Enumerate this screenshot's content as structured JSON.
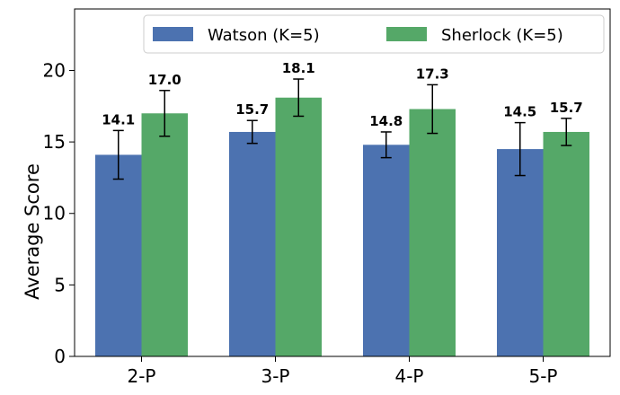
{
  "chart_data": {
    "type": "bar",
    "title": "",
    "xlabel": "",
    "ylabel": "Average Score",
    "ylim": [
      0,
      24.3
    ],
    "yticks": [
      0,
      5,
      10,
      15,
      20
    ],
    "grid": false,
    "legend_position": "top-right",
    "categories": [
      "2-P",
      "3-P",
      "4-P",
      "5-P"
    ],
    "series": [
      {
        "name": "Watson (K=5)",
        "color": "#4C72B0",
        "values": [
          14.1,
          15.7,
          14.8,
          14.5
        ],
        "errors": [
          1.7,
          0.8,
          0.9,
          1.85
        ],
        "value_labels": [
          "14.1",
          "15.7",
          "14.8",
          "14.5"
        ]
      },
      {
        "name": "Sherlock (K=5)",
        "color": "#55A868",
        "values": [
          17.0,
          18.1,
          17.3,
          15.7
        ],
        "errors": [
          1.6,
          1.3,
          1.7,
          0.95
        ],
        "value_labels": [
          "17.0",
          "18.1",
          "17.3",
          "15.7"
        ]
      }
    ]
  }
}
